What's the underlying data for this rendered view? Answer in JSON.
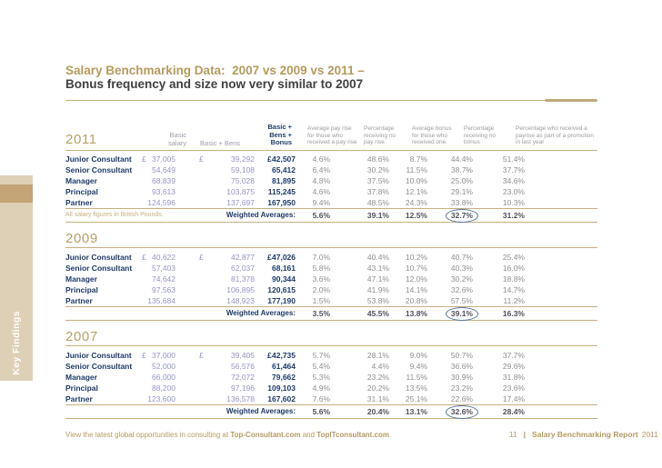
{
  "colors": {
    "accent_tan": "#b49a5e",
    "rule_tan": "#c7af80",
    "navy": "#1d3a69",
    "lavender_numbers": "#9394c6",
    "percent_gray": "#8f8f8f",
    "highlight_ellipse_blue": "#51749e",
    "sidebar_bg": "#ddd0b6",
    "sidebar_band": "#c3a476"
  },
  "sidebar": {
    "label": "Key Findings"
  },
  "title": {
    "line1": "Salary Benchmarking Data:  2007 vs 2009 vs 2011 –",
    "line2": "Bonus frequency and size now very similar to 2007"
  },
  "columns": {
    "basic_salary": "Basic salary",
    "basic_bens": "Basic + Bens",
    "basic_bens_bonus_l1": "Basic +",
    "basic_bens_bonus_l2": "Bens + Bonus",
    "avg_pay_rise": "Average pay rise for those who received a pay rise",
    "pct_no_pay_rise": "Percentage receiving no pay rise",
    "avg_bonus": "Average bonus for those who received one",
    "pct_no_bonus": "Percentage receiving no bonus",
    "pct_promotion": "Percentage who received a payrise as part of a promotion in last year"
  },
  "tables": [
    {
      "year": "2011",
      "note": "All salary figures in British Pounds.",
      "weighted_label": "Weighted Averages:",
      "rows": [
        {
          "role": "Junior Consultant",
          "basic_pound": "£",
          "basic": "37,005",
          "bens_pound": "£",
          "bens": "39,292",
          "bonus_pound": "£",
          "bonus": "42,507",
          "p1": "4.6%",
          "p2": "48.6%",
          "p3": "8.7%",
          "p4": "44.4%",
          "p5": "51.4%"
        },
        {
          "role": "Senior Consultant",
          "basic": "54,649",
          "bens": "59,108",
          "bonus": "65,412",
          "p1": "6.4%",
          "p2": "30.2%",
          "p3": "11.5%",
          "p4": "38.7%",
          "p5": "37.7%"
        },
        {
          "role": "Manager",
          "basic": "68,839",
          "bens": "75,028",
          "bonus": "81,895",
          "p1": "4.8%",
          "p2": "37.5%",
          "p3": "10.0%",
          "p4": "25.0%",
          "p5": "34.6%"
        },
        {
          "role": "Principal",
          "basic": "93,613",
          "bens": "103,875",
          "bonus": "115,245",
          "p1": "4.6%",
          "p2": "37.8%",
          "p3": "12.1%",
          "p4": "29.1%",
          "p5": "23.0%"
        },
        {
          "role": "Partner",
          "basic": "124,596",
          "bens": "137,697",
          "bonus": "167,950",
          "p1": "9.4%",
          "p2": "48.5%",
          "p3": "24.3%",
          "p4": "33.8%",
          "p5": "10.3%"
        }
      ],
      "weighted": {
        "p1": "5.6%",
        "p2": "39.1%",
        "p3": "12.5%",
        "p4": "32.7%",
        "p5": "31.2%",
        "circled_field": "p4"
      }
    },
    {
      "year": "2009",
      "weighted_label": "Weighted Averages:",
      "rows": [
        {
          "role": "Junior Consultant",
          "basic_pound": "£",
          "basic": "40,622",
          "bens_pound": "£",
          "bens": "42,877",
          "bonus_pound": "£",
          "bonus": "47,026",
          "p1": "7.0%",
          "p2": "40.4%",
          "p3": "10.2%",
          "p4": "40.7%",
          "p5": "25.4%"
        },
        {
          "role": "Senior Consultant",
          "basic": "57,403",
          "bens": "62,037",
          "bonus": "68,161",
          "p1": "5.8%",
          "p2": "43.1%",
          "p3": "10.7%",
          "p4": "40.3%",
          "p5": "16.0%"
        },
        {
          "role": "Manager",
          "basic": "74,642",
          "bens": "81,378",
          "bonus": "90,344",
          "p1": "3.6%",
          "p2": "47.1%",
          "p3": "12.0%",
          "p4": "30.2%",
          "p5": "18.8%"
        },
        {
          "role": "Principal",
          "basic": "97,563",
          "bens": "106,895",
          "bonus": "120,615",
          "p1": "2.0%",
          "p2": "41.9%",
          "p3": "14.1%",
          "p4": "32.6%",
          "p5": "14.7%"
        },
        {
          "role": "Partner",
          "basic": "135,684",
          "bens": "148,923",
          "bonus": "177,190",
          "p1": "1.5%",
          "p2": "53.8%",
          "p3": "20.8%",
          "p4": "57.5%",
          "p5": "11.2%"
        }
      ],
      "weighted": {
        "p1": "3.5%",
        "p2": "45.5%",
        "p3": "13.8%",
        "p4": "39.1%",
        "p5": "16.3%",
        "circled_field": "p4"
      }
    },
    {
      "year": "2007",
      "weighted_label": "Weighted Averages:",
      "rows": [
        {
          "role": "Junior Consultant",
          "basic_pound": "£",
          "basic": "37,000",
          "bens_pound": "£",
          "bens": "39,405",
          "bonus_pound": "£",
          "bonus": "42,735",
          "p1": "5.7%",
          "p2": "28.1%",
          "p3": "9.0%",
          "p4": "50.7%",
          "p5": "37.7%"
        },
        {
          "role": "Senior Consultant",
          "basic": "52,000",
          "bens": "56,576",
          "bonus": "61,464",
          "p1": "5.4%",
          "p2": "4.4%",
          "p3": "9.4%",
          "p4": "36.6%",
          "p5": "29.6%"
        },
        {
          "role": "Manager",
          "basic": "66,000",
          "bens": "72,072",
          "bonus": "79,662",
          "p1": "5.3%",
          "p2": "23.2%",
          "p3": "11.5%",
          "p4": "30.9%",
          "p5": "31.8%"
        },
        {
          "role": "Principal",
          "basic": "88,200",
          "bens": "97,196",
          "bonus": "109,103",
          "p1": "4.9%",
          "p2": "20.2%",
          "p3": "13.5%",
          "p4": "23.2%",
          "p5": "23.6%"
        },
        {
          "role": "Partner",
          "basic": "123,600",
          "bens": "136,578",
          "bonus": "167,602",
          "p1": "7.6%",
          "p2": "31.1%",
          "p3": "25.1%",
          "p4": "22.6%",
          "p5": "17.4%"
        }
      ],
      "weighted": {
        "p1": "5.6%",
        "p2": "20.4%",
        "p3": "13.1%",
        "p4": "32.6%",
        "p5": "28.4%",
        "circled_field": "p4"
      }
    }
  ],
  "footer": {
    "left": {
      "prefix": "View the latest global opportunities in consulting at ",
      "link1": "Top-Consultant.com",
      "and": " and ",
      "link2": "TopITconsultant.com",
      "suffix": "."
    },
    "right": {
      "page_number": "11",
      "divider": "|",
      "report": "Salary Benchmarking Report",
      "year": "2011"
    }
  }
}
